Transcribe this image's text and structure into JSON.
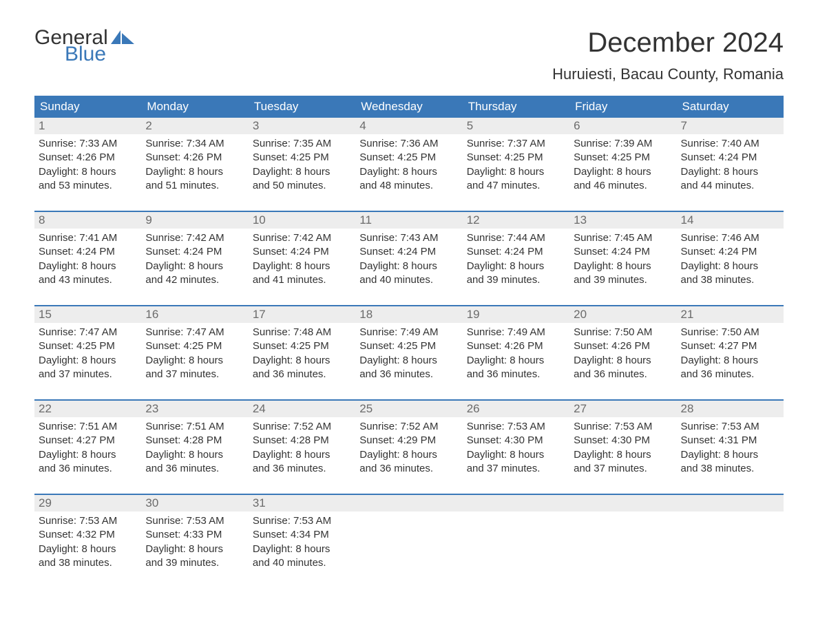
{
  "logo": {
    "text1": "General",
    "text2": "Blue",
    "flag_color": "#3a78b8"
  },
  "title": "December 2024",
  "location": "Huruiesti, Bacau County, Romania",
  "colors": {
    "header_bg": "#3a78b8",
    "header_text": "#ffffff",
    "daynum_bg": "#ededed",
    "daynum_text": "#6b6b6b",
    "body_text": "#333333",
    "week_border": "#3a78b8",
    "page_bg": "#ffffff"
  },
  "typography": {
    "title_fontsize": 40,
    "location_fontsize": 22,
    "weekday_fontsize": 17,
    "daynum_fontsize": 17,
    "body_fontsize": 15,
    "font_family": "Arial"
  },
  "weekdays": [
    "Sunday",
    "Monday",
    "Tuesday",
    "Wednesday",
    "Thursday",
    "Friday",
    "Saturday"
  ],
  "days": [
    {
      "n": 1,
      "sunrise": "7:33 AM",
      "sunset": "4:26 PM",
      "dl_h": 8,
      "dl_m": 53
    },
    {
      "n": 2,
      "sunrise": "7:34 AM",
      "sunset": "4:26 PM",
      "dl_h": 8,
      "dl_m": 51
    },
    {
      "n": 3,
      "sunrise": "7:35 AM",
      "sunset": "4:25 PM",
      "dl_h": 8,
      "dl_m": 50
    },
    {
      "n": 4,
      "sunrise": "7:36 AM",
      "sunset": "4:25 PM",
      "dl_h": 8,
      "dl_m": 48
    },
    {
      "n": 5,
      "sunrise": "7:37 AM",
      "sunset": "4:25 PM",
      "dl_h": 8,
      "dl_m": 47
    },
    {
      "n": 6,
      "sunrise": "7:39 AM",
      "sunset": "4:25 PM",
      "dl_h": 8,
      "dl_m": 46
    },
    {
      "n": 7,
      "sunrise": "7:40 AM",
      "sunset": "4:24 PM",
      "dl_h": 8,
      "dl_m": 44
    },
    {
      "n": 8,
      "sunrise": "7:41 AM",
      "sunset": "4:24 PM",
      "dl_h": 8,
      "dl_m": 43
    },
    {
      "n": 9,
      "sunrise": "7:42 AM",
      "sunset": "4:24 PM",
      "dl_h": 8,
      "dl_m": 42
    },
    {
      "n": 10,
      "sunrise": "7:42 AM",
      "sunset": "4:24 PM",
      "dl_h": 8,
      "dl_m": 41
    },
    {
      "n": 11,
      "sunrise": "7:43 AM",
      "sunset": "4:24 PM",
      "dl_h": 8,
      "dl_m": 40
    },
    {
      "n": 12,
      "sunrise": "7:44 AM",
      "sunset": "4:24 PM",
      "dl_h": 8,
      "dl_m": 39
    },
    {
      "n": 13,
      "sunrise": "7:45 AM",
      "sunset": "4:24 PM",
      "dl_h": 8,
      "dl_m": 39
    },
    {
      "n": 14,
      "sunrise": "7:46 AM",
      "sunset": "4:24 PM",
      "dl_h": 8,
      "dl_m": 38
    },
    {
      "n": 15,
      "sunrise": "7:47 AM",
      "sunset": "4:25 PM",
      "dl_h": 8,
      "dl_m": 37
    },
    {
      "n": 16,
      "sunrise": "7:47 AM",
      "sunset": "4:25 PM",
      "dl_h": 8,
      "dl_m": 37
    },
    {
      "n": 17,
      "sunrise": "7:48 AM",
      "sunset": "4:25 PM",
      "dl_h": 8,
      "dl_m": 36
    },
    {
      "n": 18,
      "sunrise": "7:49 AM",
      "sunset": "4:25 PM",
      "dl_h": 8,
      "dl_m": 36
    },
    {
      "n": 19,
      "sunrise": "7:49 AM",
      "sunset": "4:26 PM",
      "dl_h": 8,
      "dl_m": 36
    },
    {
      "n": 20,
      "sunrise": "7:50 AM",
      "sunset": "4:26 PM",
      "dl_h": 8,
      "dl_m": 36
    },
    {
      "n": 21,
      "sunrise": "7:50 AM",
      "sunset": "4:27 PM",
      "dl_h": 8,
      "dl_m": 36
    },
    {
      "n": 22,
      "sunrise": "7:51 AM",
      "sunset": "4:27 PM",
      "dl_h": 8,
      "dl_m": 36
    },
    {
      "n": 23,
      "sunrise": "7:51 AM",
      "sunset": "4:28 PM",
      "dl_h": 8,
      "dl_m": 36
    },
    {
      "n": 24,
      "sunrise": "7:52 AM",
      "sunset": "4:28 PM",
      "dl_h": 8,
      "dl_m": 36
    },
    {
      "n": 25,
      "sunrise": "7:52 AM",
      "sunset": "4:29 PM",
      "dl_h": 8,
      "dl_m": 36
    },
    {
      "n": 26,
      "sunrise": "7:53 AM",
      "sunset": "4:30 PM",
      "dl_h": 8,
      "dl_m": 37
    },
    {
      "n": 27,
      "sunrise": "7:53 AM",
      "sunset": "4:30 PM",
      "dl_h": 8,
      "dl_m": 37
    },
    {
      "n": 28,
      "sunrise": "7:53 AM",
      "sunset": "4:31 PM",
      "dl_h": 8,
      "dl_m": 38
    },
    {
      "n": 29,
      "sunrise": "7:53 AM",
      "sunset": "4:32 PM",
      "dl_h": 8,
      "dl_m": 38
    },
    {
      "n": 30,
      "sunrise": "7:53 AM",
      "sunset": "4:33 PM",
      "dl_h": 8,
      "dl_m": 39
    },
    {
      "n": 31,
      "sunrise": "7:53 AM",
      "sunset": "4:34 PM",
      "dl_h": 8,
      "dl_m": 40
    }
  ],
  "labels": {
    "sunrise": "Sunrise:",
    "sunset": "Sunset:",
    "daylight": "Daylight:",
    "hours": "hours",
    "and": "and",
    "minutes": "minutes."
  },
  "layout": {
    "columns": 7,
    "first_day_offset": 0,
    "total_days": 31
  }
}
